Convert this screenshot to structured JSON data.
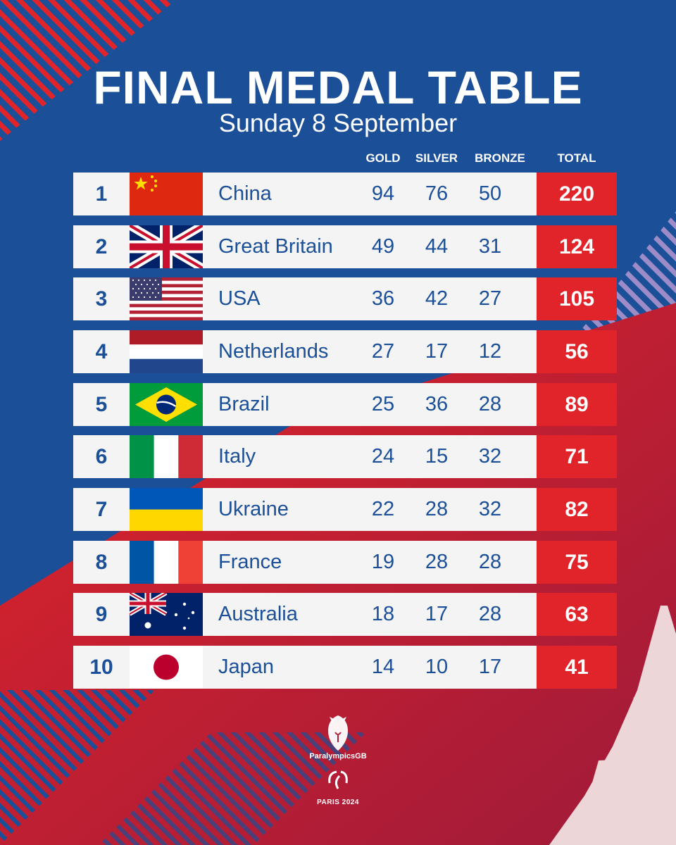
{
  "title": "FINAL MEDAL TABLE",
  "subtitle": "Sunday 8 September",
  "columns": {
    "gold": "GOLD",
    "silver": "SILVER",
    "bronze": "BRONZE",
    "total": "TOTAL"
  },
  "rows": [
    {
      "rank": "1",
      "country": "China",
      "flag": "china-flag",
      "gold": "94",
      "silver": "76",
      "bronze": "50",
      "total": "220"
    },
    {
      "rank": "2",
      "country": "Great Britain",
      "flag": "great-britain-flag",
      "gold": "49",
      "silver": "44",
      "bronze": "31",
      "total": "124"
    },
    {
      "rank": "3",
      "country": "USA",
      "flag": "usa-flag",
      "gold": "36",
      "silver": "42",
      "bronze": "27",
      "total": "105"
    },
    {
      "rank": "4",
      "country": "Netherlands",
      "flag": "netherlands-flag",
      "gold": "27",
      "silver": "17",
      "bronze": "12",
      "total": "56"
    },
    {
      "rank": "5",
      "country": "Brazil",
      "flag": "brazil-flag",
      "gold": "25",
      "silver": "36",
      "bronze": "28",
      "total": "89"
    },
    {
      "rank": "6",
      "country": "Italy",
      "flag": "italy-flag",
      "gold": "24",
      "silver": "15",
      "bronze": "32",
      "total": "71"
    },
    {
      "rank": "7",
      "country": "Ukraine",
      "flag": "ukraine-flag",
      "gold": "22",
      "silver": "28",
      "bronze": "32",
      "total": "82"
    },
    {
      "rank": "8",
      "country": "France",
      "flag": "france-flag",
      "gold": "19",
      "silver": "28",
      "bronze": "28",
      "total": "75"
    },
    {
      "rank": "9",
      "country": "Australia",
      "flag": "australia-flag",
      "gold": "18",
      "silver": "17",
      "bronze": "28",
      "total": "63"
    },
    {
      "rank": "10",
      "country": "Japan",
      "flag": "japan-flag",
      "gold": "14",
      "silver": "10",
      "bronze": "17",
      "total": "41"
    }
  ],
  "logo": {
    "brand": "ParalympicsGB",
    "games": "PARIS 2024",
    "icons": [
      "lion-icon",
      "agitos-icon"
    ]
  },
  "colors": {
    "blue": "#1b4f98",
    "red": "#e0242a",
    "row": "#f4f4f4",
    "white": "#ffffff"
  }
}
